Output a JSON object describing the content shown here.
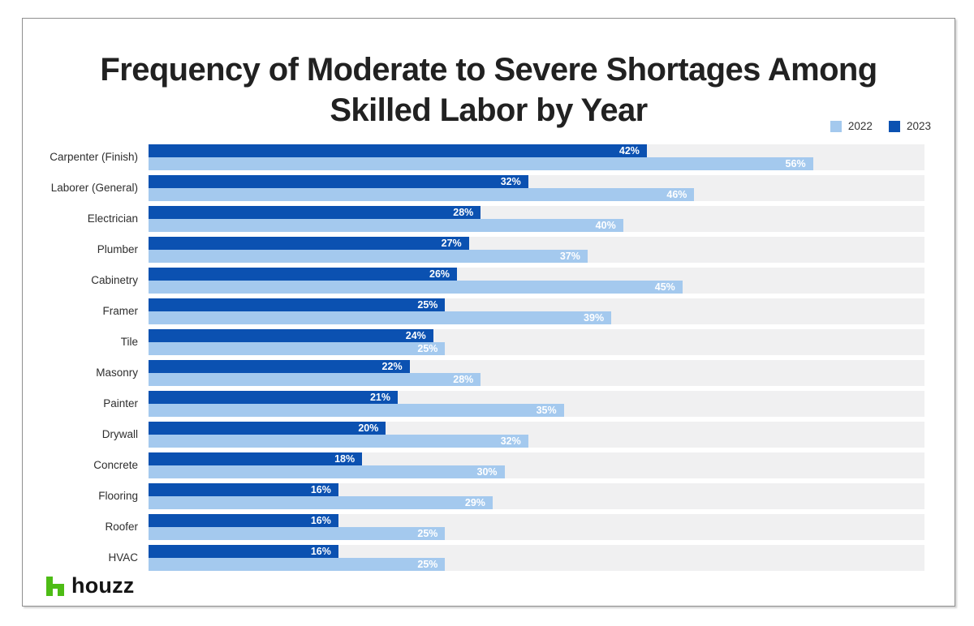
{
  "title": {
    "line1": "Frequency of Moderate to Severe Shortages Among",
    "line2": "Skilled Labor by Year"
  },
  "legend": {
    "items": [
      {
        "label": "2022",
        "color": "#a4c9ee"
      },
      {
        "label": "2023",
        "color": "#0b51b1"
      }
    ]
  },
  "footer": {
    "brand": "houzz",
    "brand_icon": "houzz-house-icon",
    "brand_color": "#4dbc15"
  },
  "colors": {
    "track": "#f0f0f1",
    "title_text": "#212121",
    "category_text": "#2e2e2e",
    "value_text": "#ffffff",
    "series_2023": "#0b51b1",
    "series_2022": "#a4c9ee"
  },
  "chart_data": {
    "type": "bar",
    "orientation": "horizontal",
    "title": "Frequency of Moderate to Severe Shortages Among Skilled Labor by Year",
    "categories": [
      "Carpenter (Finish)",
      "Laborer (General)",
      "Electrician",
      "Plumber",
      "Cabinetry",
      "Framer",
      "Tile",
      "Masonry",
      "Painter",
      "Drywall",
      "Concrete",
      "Flooring",
      "Roofer",
      "HVAC"
    ],
    "series": [
      {
        "name": "2023",
        "color": "#0b51b1",
        "values": [
          42,
          32,
          28,
          27,
          26,
          25,
          24,
          22,
          21,
          20,
          18,
          16,
          16,
          16
        ]
      },
      {
        "name": "2022",
        "color": "#a4c9ee",
        "values": [
          56,
          46,
          40,
          37,
          45,
          39,
          25,
          28,
          35,
          32,
          30,
          29,
          25,
          25
        ]
      }
    ],
    "value_suffix": "%",
    "xlim": [
      0,
      65.4
    ],
    "grid": false,
    "legend_position": "top-right",
    "bar_order_within_row": [
      "2023",
      "2022"
    ],
    "value_labels": "inside-end, white bold"
  }
}
